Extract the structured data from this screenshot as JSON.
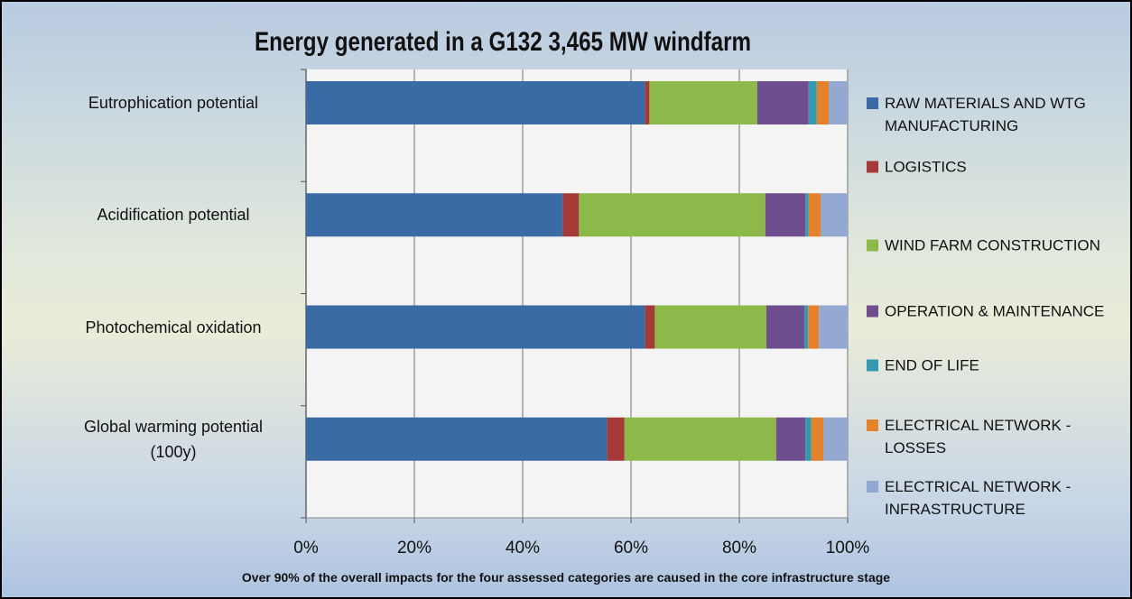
{
  "chart_data": {
    "type": "stacked_barh",
    "title": "Energy generated in a G132 3,465 MW windfarm",
    "footnote": "Over 90% of the overall impacts for the four assessed categories are caused in the core infrastructure stage",
    "categories": [
      "Eutrophication potential",
      "Acidification potential",
      "Photochemical oxidation",
      "Global warming potential (100y)"
    ],
    "series": [
      {
        "name": "RAW MATERIALS AND WTG MANUFACTURING",
        "color": "#3b6ba5",
        "values": [
          62.6,
          47.4,
          62.6,
          55.6
        ]
      },
      {
        "name": "LOGISTICS",
        "color": "#a63a38",
        "values": [
          0.8,
          3.0,
          1.8,
          3.2
        ]
      },
      {
        "name": "WIND FARM CONSTRUCTION",
        "color": "#8db94b",
        "values": [
          19.9,
          34.4,
          20.6,
          28.0
        ]
      },
      {
        "name": "OPERATION & MAINTENANCE",
        "color": "#6e4e8e",
        "values": [
          9.5,
          7.4,
          7.0,
          5.4
        ]
      },
      {
        "name": "END OF LIFE",
        "color": "#3598b1",
        "values": [
          1.5,
          0.6,
          0.7,
          1.1
        ]
      },
      {
        "name": "ELECTRICAL NETWORK - LOSSES",
        "color": "#e5832c",
        "values": [
          2.2,
          2.2,
          2.0,
          2.2
        ]
      },
      {
        "name": "ELECTRICAL NETWORK - INFRASTRUCTURE",
        "color": "#93a9d1",
        "values": [
          3.5,
          5.0,
          5.3,
          4.5
        ]
      }
    ],
    "xlim": [
      0,
      100
    ],
    "xticks": [
      {
        "value": 0,
        "label": "0%"
      },
      {
        "value": 20,
        "label": "20%"
      },
      {
        "value": 40,
        "label": "40%"
      },
      {
        "value": 60,
        "label": "60%"
      },
      {
        "value": 80,
        "label": "80%"
      },
      {
        "value": 100,
        "label": "100%"
      }
    ],
    "grid": true,
    "legend": "right"
  }
}
